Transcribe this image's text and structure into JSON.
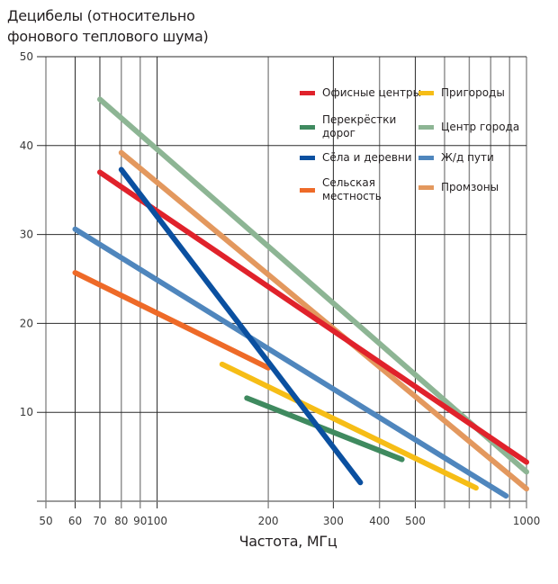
{
  "chart_data": {
    "type": "line",
    "title": "Децибелы (относительно фонового теплового шума)",
    "title_lines": [
      "Децибелы (относительно",
      "фонового теплового шума)"
    ],
    "xlabel": "Частота, МГц",
    "ylabel": "Децибелы (относительно фонового теплового шума)",
    "xscale": "log",
    "xlim": [
      50,
      1000
    ],
    "ylim": [
      0,
      50
    ],
    "x_ticks": [
      50,
      60,
      70,
      80,
      90,
      100,
      200,
      300,
      400,
      500,
      600,
      700,
      800,
      900,
      1000
    ],
    "x_tick_labels": [
      "50",
      "60",
      "70",
      "80",
      "90",
      "100",
      "200",
      "300",
      "400",
      "500",
      "",
      "",
      "",
      "",
      "1000"
    ],
    "y_ticks": [
      0,
      10,
      20,
      30,
      40,
      50
    ],
    "y_tick_labels": [
      "",
      "10",
      "20",
      "30",
      "40",
      "50"
    ],
    "grid": true,
    "legend_position": "top-right",
    "series": [
      {
        "name": "Офисные центры",
        "color": "#e0222b",
        "x": [
          70,
          1000
        ],
        "y": [
          37.0,
          4.4
        ]
      },
      {
        "name": "Пригороды",
        "color": "#f6bd16",
        "x": [
          150,
          730
        ],
        "y": [
          15.4,
          1.5
        ]
      },
      {
        "name": "Перекрёстки дорог",
        "color": "#3f8a5f",
        "x": [
          175,
          460
        ],
        "y": [
          11.6,
          4.7
        ]
      },
      {
        "name": "Центр города",
        "color": "#8db594",
        "x": [
          70,
          1000
        ],
        "y": [
          45.2,
          3.3
        ]
      },
      {
        "name": "Сёла и деревни",
        "color": "#0b50a0",
        "x": [
          80,
          355
        ],
        "y": [
          37.3,
          2.1
        ]
      },
      {
        "name": "Ж/д пути",
        "color": "#4f86bd",
        "x": [
          60,
          880
        ],
        "y": [
          30.6,
          0.6
        ]
      },
      {
        "name": "Сельская местность",
        "color": "#ee6a28",
        "x": [
          60,
          200
        ],
        "y": [
          25.7,
          15.0
        ]
      },
      {
        "name": "Промзоны",
        "color": "#e3985e",
        "x": [
          80,
          1000
        ],
        "y": [
          39.2,
          1.4
        ]
      }
    ]
  },
  "legend": [
    {
      "lines": [
        "Офисные центры"
      ],
      "color": "#e0222b"
    },
    {
      "lines": [
        "Пригороды"
      ],
      "color": "#f6bd16"
    },
    {
      "lines": [
        "Перекрёстки",
        "дорог"
      ],
      "color": "#3f8a5f"
    },
    {
      "lines": [
        "Центр города"
      ],
      "color": "#8db594"
    },
    {
      "lines": [
        "Сёла и деревни"
      ],
      "color": "#0b50a0"
    },
    {
      "lines": [
        "Ж/д пути"
      ],
      "color": "#4f86bd"
    },
    {
      "lines": [
        "Сельская",
        "местность"
      ],
      "color": "#ee6a28"
    },
    {
      "lines": [
        "Промзоны"
      ],
      "color": "#e3985e"
    }
  ]
}
